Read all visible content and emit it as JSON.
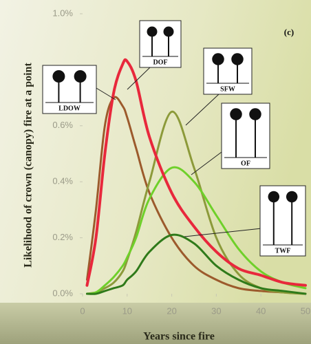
{
  "chart_data": {
    "type": "line",
    "x_label": "Years since fire",
    "y_label": "Likelihood of crown (canopy) fire at a point",
    "panel_label": "(c)",
    "x": [
      1,
      3,
      5,
      7,
      9,
      10,
      12,
      15,
      20,
      25,
      30,
      35,
      40,
      45,
      50
    ],
    "series": [
      {
        "name": "DOF",
        "color": "#e8283c",
        "values": [
          0.03,
          0.2,
          0.5,
          0.72,
          0.82,
          0.83,
          0.76,
          0.56,
          0.36,
          0.24,
          0.15,
          0.09,
          0.066,
          0.04,
          0.03
        ]
      },
      {
        "name": "LDOW",
        "color": "#9c5a2c",
        "values": [
          0.05,
          0.3,
          0.6,
          0.7,
          0.67,
          0.63,
          0.52,
          0.36,
          0.2,
          0.1,
          0.05,
          0.02,
          0.01,
          0.005,
          0
        ]
      },
      {
        "name": "SFW",
        "color": "#8c9a3a",
        "values": [
          0,
          0.005,
          0.02,
          0.04,
          0.08,
          0.12,
          0.22,
          0.4,
          0.65,
          0.45,
          0.2,
          0.07,
          0.02,
          0.005,
          0
        ]
      },
      {
        "name": "OF",
        "color": "#6fd02a",
        "values": [
          0,
          0.005,
          0.03,
          0.06,
          0.1,
          0.13,
          0.2,
          0.34,
          0.45,
          0.4,
          0.28,
          0.16,
          0.08,
          0.04,
          0.02
        ]
      },
      {
        "name": "TWF",
        "color": "#2f7a1a",
        "values": [
          0,
          0,
          0.01,
          0.02,
          0.03,
          0.05,
          0.08,
          0.15,
          0.21,
          0.18,
          0.1,
          0.05,
          0.02,
          0.01,
          0
        ]
      }
    ],
    "xlim": [
      0,
      50
    ],
    "xticks": [
      0,
      10,
      20,
      30,
      40,
      50
    ],
    "ylim": [
      0,
      1.0
    ],
    "yticks": [
      {
        "value": 0,
        "label": "0.0%"
      },
      {
        "value": 0.2,
        "label": "0.2%"
      },
      {
        "value": 0.4,
        "label": "0.4%"
      },
      {
        "value": 0.6,
        "label": "0.6%"
      },
      {
        "value": 1.0,
        "label": "1.0%"
      }
    ]
  }
}
